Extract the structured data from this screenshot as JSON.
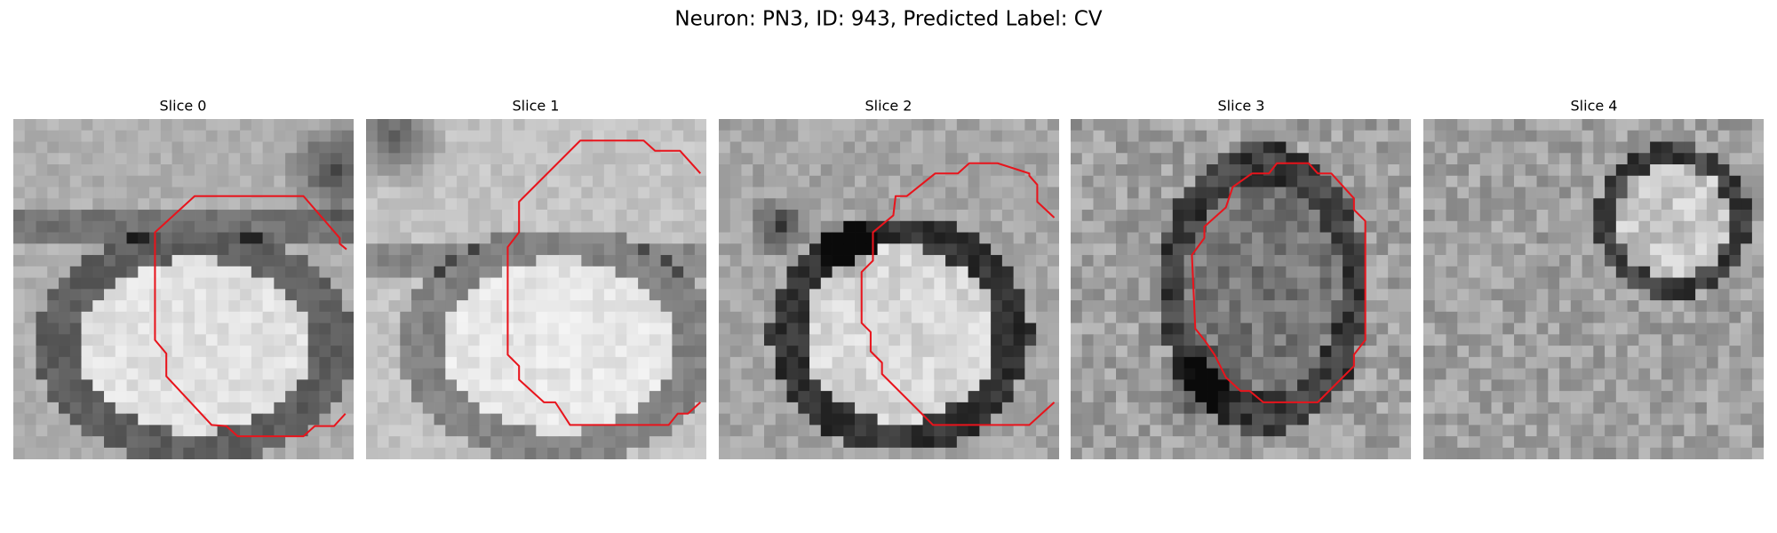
{
  "title": "Neuron: PN3, ID: 943, Predicted Label: CV",
  "panels": [
    {
      "title": "Slice 0"
    },
    {
      "title": "Slice 1"
    },
    {
      "title": "Slice 2"
    },
    {
      "title": "Slice 3"
    },
    {
      "title": "Slice 4"
    }
  ]
}
